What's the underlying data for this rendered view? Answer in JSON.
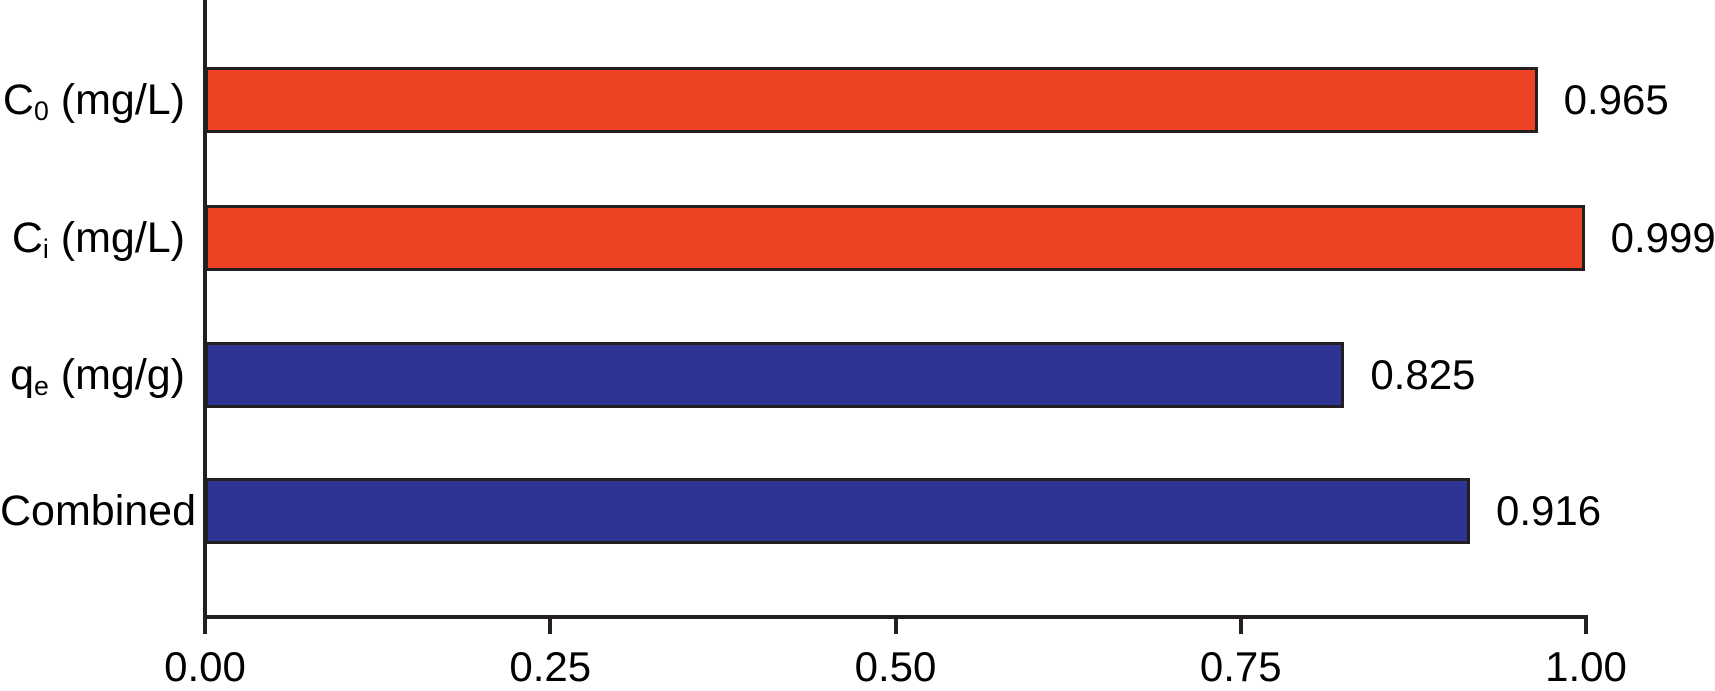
{
  "chart_data": {
    "type": "bar",
    "orientation": "horizontal",
    "title": "",
    "xlabel": "",
    "ylabel": "",
    "xlim": [
      0.0,
      1.0
    ],
    "grid": false,
    "legend": false,
    "value_labels_shown": true,
    "x_tick_values": [
      0.0,
      0.25,
      0.5,
      0.75,
      1.0
    ],
    "x_ticks": [
      "0.00",
      "0.25",
      "0.50",
      "0.75",
      "1.00"
    ],
    "categories": [
      "C0 (mg/L)",
      "Ci (mg/L)",
      "qe (mg/g)",
      "Combined"
    ],
    "values": [
      0.965,
      0.999,
      0.825,
      0.916
    ],
    "bars": [
      {
        "label_base": "C",
        "label_sub": "0",
        "label_rest": " (mg/L)",
        "value": 0.965,
        "value_label": "0.965",
        "color": "#ee4224"
      },
      {
        "label_base": "C",
        "label_sub": "i",
        "label_rest": " (mg/L)",
        "value": 0.999,
        "value_label": "0.999",
        "color": "#ee4224"
      },
      {
        "label_base": "q",
        "label_sub": "e",
        "label_rest": " (mg/g)",
        "value": 0.825,
        "value_label": "0.825",
        "color": "#2e3494"
      },
      {
        "label_base": "Combined",
        "label_sub": "",
        "label_rest": "",
        "value": 0.916,
        "value_label": "0.916",
        "color": "#2e3494"
      }
    ],
    "colors": {
      "bar_red": "#ee4224",
      "bar_blue": "#2e3494",
      "bar_border": "#231f20",
      "axis": "#231f20",
      "text": "#000000",
      "background": "#ffffff"
    }
  }
}
